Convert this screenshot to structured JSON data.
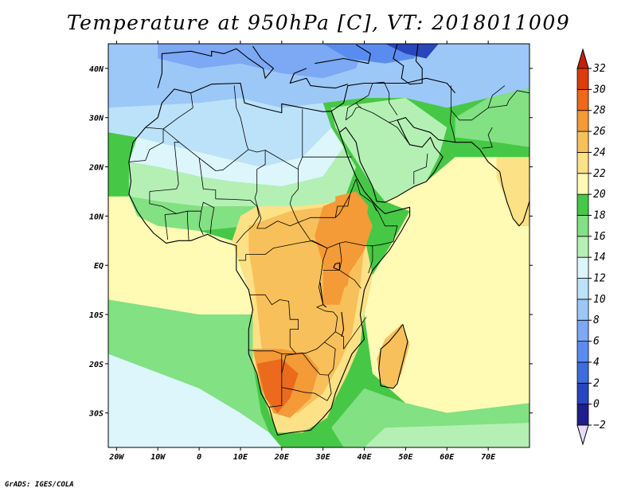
{
  "title": "Temperature at 950hPa [C], VT: 2018011009",
  "credit": "GrADS: IGES/COLA",
  "map": {
    "lon_range": [
      -22,
      80
    ],
    "lat_range": [
      -37,
      45
    ],
    "lon_ticks": [
      {
        "value": -20,
        "label": "20W"
      },
      {
        "value": -10,
        "label": "10W"
      },
      {
        "value": 0,
        "label": "0"
      },
      {
        "value": 10,
        "label": "10E"
      },
      {
        "value": 20,
        "label": "20E"
      },
      {
        "value": 30,
        "label": "30E"
      },
      {
        "value": 40,
        "label": "40E"
      },
      {
        "value": 50,
        "label": "50E"
      },
      {
        "value": 60,
        "label": "60E"
      },
      {
        "value": 70,
        "label": "70E"
      }
    ],
    "lat_ticks": [
      {
        "value": 40,
        "label": "40N"
      },
      {
        "value": 30,
        "label": "30N"
      },
      {
        "value": 20,
        "label": "20N"
      },
      {
        "value": 10,
        "label": "10N"
      },
      {
        "value": 0,
        "label": "EQ"
      },
      {
        "value": -10,
        "label": "10S"
      },
      {
        "value": -20,
        "label": "20S"
      },
      {
        "value": -30,
        "label": "30S"
      }
    ]
  },
  "colorbar": {
    "levels": [
      -2,
      0,
      2,
      4,
      6,
      8,
      10,
      12,
      14,
      16,
      18,
      20,
      22,
      24,
      26,
      28,
      30,
      32
    ],
    "colors": [
      "#e6dcff",
      "#1e1e8c",
      "#2846be",
      "#3c6edc",
      "#5a8cf0",
      "#7ca8f4",
      "#9cc8f8",
      "#bce2fa",
      "#dcf6fc",
      "#b4f0b4",
      "#82e182",
      "#46c846",
      "#fffab4",
      "#fce186",
      "#f8c05a",
      "#f49a36",
      "#ec6a1c",
      "#dc3c0e",
      "#c81e0a"
    ]
  },
  "regions": [
    {
      "name": "northern-cold",
      "level": 8,
      "poly": [
        [
          -22,
          45
        ],
        [
          80,
          45
        ],
        [
          80,
          36
        ],
        [
          70,
          34
        ],
        [
          60,
          32
        ],
        [
          50,
          34
        ],
        [
          40,
          34
        ],
        [
          30,
          33
        ],
        [
          20,
          32
        ],
        [
          10,
          34
        ],
        [
          0,
          33
        ],
        [
          -10,
          32
        ],
        [
          -22,
          32
        ]
      ]
    },
    {
      "name": "med-blue",
      "level": 6,
      "poly": [
        [
          -10,
          45
        ],
        [
          40,
          45
        ],
        [
          38,
          40
        ],
        [
          30,
          38
        ],
        [
          20,
          39
        ],
        [
          10,
          41
        ],
        [
          0,
          40
        ],
        [
          -10,
          42
        ]
      ]
    },
    {
      "name": "europe-darker",
      "level": 4,
      "poly": [
        [
          30,
          45
        ],
        [
          55,
          45
        ],
        [
          52,
          42
        ],
        [
          45,
          41
        ],
        [
          36,
          42
        ]
      ]
    },
    {
      "name": "caspian-coldest",
      "level": 0,
      "poly": [
        [
          45,
          45
        ],
        [
          58,
          45
        ],
        [
          55,
          42
        ],
        [
          50,
          43
        ]
      ]
    },
    {
      "name": "sahara-pale",
      "level": 10,
      "poly": [
        [
          -22,
          32
        ],
        [
          0,
          33
        ],
        [
          10,
          34
        ],
        [
          20,
          32
        ],
        [
          30,
          33
        ],
        [
          32,
          28
        ],
        [
          25,
          22
        ],
        [
          15,
          20
        ],
        [
          5,
          22
        ],
        [
          -5,
          24
        ],
        [
          -15,
          26
        ],
        [
          -22,
          27
        ]
      ]
    },
    {
      "name": "sahara-light",
      "level": 12,
      "poly": [
        [
          -15,
          26
        ],
        [
          -5,
          24
        ],
        [
          5,
          22
        ],
        [
          15,
          20
        ],
        [
          25,
          22
        ],
        [
          32,
          28
        ],
        [
          35,
          24
        ],
        [
          30,
          18
        ],
        [
          20,
          16
        ],
        [
          8,
          17
        ],
        [
          0,
          18
        ],
        [
          -10,
          20
        ],
        [
          -17,
          21
        ]
      ]
    },
    {
      "name": "sahel-green",
      "level": 14,
      "poly": [
        [
          -17,
          21
        ],
        [
          -10,
          20
        ],
        [
          0,
          18
        ],
        [
          8,
          17
        ],
        [
          20,
          16
        ],
        [
          30,
          18
        ],
        [
          35,
          24
        ],
        [
          38,
          20
        ],
        [
          35,
          13
        ],
        [
          25,
          12
        ],
        [
          12,
          12
        ],
        [
          0,
          12
        ],
        [
          -10,
          13
        ],
        [
          -17,
          14
        ]
      ]
    },
    {
      "name": "sahel-green-mid",
      "level": 16,
      "poly": [
        [
          -17,
          14
        ],
        [
          -10,
          13
        ],
        [
          0,
          12
        ],
        [
          12,
          12
        ],
        [
          25,
          12
        ],
        [
          35,
          13
        ],
        [
          34,
          9
        ],
        [
          24,
          8
        ],
        [
          12,
          8
        ],
        [
          0,
          7
        ],
        [
          -10,
          8
        ],
        [
          -15,
          10
        ]
      ]
    },
    {
      "name": "arabia-green",
      "level": 15,
      "poly": [
        [
          32,
          32
        ],
        [
          50,
          34
        ],
        [
          60,
          28
        ],
        [
          58,
          22
        ],
        [
          55,
          17
        ],
        [
          45,
          13
        ],
        [
          42,
          16
        ],
        [
          36,
          24
        ],
        [
          33,
          28
        ]
      ]
    },
    {
      "name": "india-south",
      "level": 16,
      "poly": [
        [
          62,
          26
        ],
        [
          72,
          25
        ],
        [
          80,
          24
        ],
        [
          80,
          36
        ],
        [
          70,
          34
        ],
        [
          62,
          30
        ]
      ]
    },
    {
      "name": "india-warm",
      "level": 22,
      "poly": [
        [
          72,
          22
        ],
        [
          80,
          22
        ],
        [
          80,
          8
        ],
        [
          77,
          8
        ],
        [
          74,
          14
        ],
        [
          72,
          18
        ]
      ]
    },
    {
      "name": "atlantic-trop",
      "level": 20,
      "poly": [
        [
          -22,
          14
        ],
        [
          -17,
          14
        ],
        [
          -15,
          10
        ],
        [
          -10,
          8
        ],
        [
          0,
          7
        ],
        [
          8,
          5
        ],
        [
          10,
          0
        ],
        [
          12,
          -5
        ],
        [
          13,
          -10
        ],
        [
          0,
          -10
        ],
        [
          -22,
          -7
        ]
      ]
    },
    {
      "name": "atlantic-south-green",
      "level": 16,
      "poly": [
        [
          -22,
          -7
        ],
        [
          0,
          -10
        ],
        [
          13,
          -10
        ],
        [
          13,
          -20
        ],
        [
          14,
          -25
        ],
        [
          15,
          -30
        ],
        [
          17,
          -34
        ],
        [
          10,
          -30
        ],
        [
          0,
          -25
        ],
        [
          -22,
          -18
        ]
      ]
    },
    {
      "name": "atlantic-south-light",
      "level": 13,
      "poly": [
        [
          -22,
          -18
        ],
        [
          0,
          -25
        ],
        [
          10,
          -30
        ],
        [
          17,
          -34
        ],
        [
          20,
          -37
        ],
        [
          -22,
          -37
        ]
      ]
    },
    {
      "name": "indian-ocean-tan",
      "level": 21,
      "poly": [
        [
          45,
          13
        ],
        [
          55,
          17
        ],
        [
          62,
          22
        ],
        [
          72,
          22
        ],
        [
          72,
          18
        ],
        [
          74,
          14
        ],
        [
          77,
          8
        ],
        [
          80,
          8
        ],
        [
          80,
          -28
        ],
        [
          60,
          -30
        ],
        [
          50,
          -28
        ],
        [
          42,
          -22
        ],
        [
          40,
          -10
        ],
        [
          42,
          -2
        ],
        [
          47,
          5
        ],
        [
          51,
          11
        ]
      ]
    },
    {
      "name": "indian-ocean-south-green",
      "level": 16,
      "poly": [
        [
          40,
          -25
        ],
        [
          50,
          -28
        ],
        [
          60,
          -30
        ],
        [
          80,
          -28
        ],
        [
          80,
          -37
        ],
        [
          35,
          -37
        ],
        [
          32,
          -33
        ]
      ]
    },
    {
      "name": "indian-ocean-south-light",
      "level": 14,
      "poly": [
        [
          45,
          -33
        ],
        [
          80,
          -32
        ],
        [
          80,
          -37
        ],
        [
          40,
          -37
        ]
      ]
    },
    {
      "name": "central-africa-warm",
      "level": 22,
      "poly": [
        [
          8,
          5
        ],
        [
          10,
          10
        ],
        [
          14,
          12
        ],
        [
          24,
          12
        ],
        [
          35,
          13
        ],
        [
          38,
          12
        ],
        [
          40,
          6
        ],
        [
          42,
          -2
        ],
        [
          40,
          -10
        ],
        [
          39,
          -16
        ],
        [
          36,
          -22
        ],
        [
          33,
          -27
        ],
        [
          31,
          -31
        ],
        [
          25,
          -34
        ],
        [
          19,
          -34
        ],
        [
          17,
          -30
        ],
        [
          15,
          -25
        ],
        [
          13,
          -20
        ],
        [
          13,
          -10
        ],
        [
          12,
          -5
        ],
        [
          10,
          0
        ]
      ]
    },
    {
      "name": "central-africa-orange",
      "level": 25,
      "poly": [
        [
          12,
          8
        ],
        [
          22,
          11
        ],
        [
          32,
          12
        ],
        [
          38,
          10
        ],
        [
          40,
          4
        ],
        [
          39,
          -4
        ],
        [
          37,
          -14
        ],
        [
          34,
          -20
        ],
        [
          30,
          -26
        ],
        [
          24,
          -30
        ],
        [
          20,
          -30
        ],
        [
          17,
          -24
        ],
        [
          15,
          -16
        ],
        [
          14,
          -8
        ],
        [
          13,
          -2
        ],
        [
          12,
          3
        ]
      ]
    },
    {
      "name": "east-africa-orange-deep",
      "level": 26,
      "poly": [
        [
          30,
          12
        ],
        [
          36,
          14
        ],
        [
          40,
          12
        ],
        [
          42,
          8
        ],
        [
          40,
          3
        ],
        [
          36,
          -2
        ],
        [
          34,
          -8
        ],
        [
          30,
          -8
        ],
        [
          30,
          0
        ],
        [
          28,
          6
        ]
      ]
    },
    {
      "name": "ethiopia-red",
      "level": 27,
      "poly": [
        [
          33,
          14
        ],
        [
          38,
          15
        ],
        [
          41,
          12
        ],
        [
          40,
          7
        ],
        [
          37,
          4
        ],
        [
          34,
          6
        ],
        [
          33,
          10
        ]
      ]
    },
    {
      "name": "kenya-red",
      "level": 27,
      "poly": [
        [
          32,
          3
        ],
        [
          37,
          2
        ],
        [
          36,
          -4
        ],
        [
          33,
          -6
        ],
        [
          30,
          -2
        ]
      ]
    },
    {
      "name": "namibia-red",
      "level": 27,
      "poly": [
        [
          13,
          -17
        ],
        [
          20,
          -17
        ],
        [
          26,
          -18
        ],
        [
          29,
          -21
        ],
        [
          27,
          -27
        ],
        [
          22,
          -31
        ],
        [
          18,
          -30
        ],
        [
          15,
          -25
        ]
      ]
    },
    {
      "name": "namibia-hot",
      "level": 29,
      "poly": [
        [
          14,
          -20
        ],
        [
          20,
          -19
        ],
        [
          24,
          -22
        ],
        [
          22,
          -27
        ],
        [
          19,
          -30
        ],
        [
          16,
          -27
        ]
      ]
    },
    {
      "name": "madagascar",
      "level": 24,
      "poly": [
        [
          49,
          -12
        ],
        [
          51,
          -16
        ],
        [
          49,
          -22
        ],
        [
          47,
          -25
        ],
        [
          44,
          -24
        ],
        [
          43,
          -19
        ],
        [
          45,
          -15
        ]
      ]
    }
  ]
}
